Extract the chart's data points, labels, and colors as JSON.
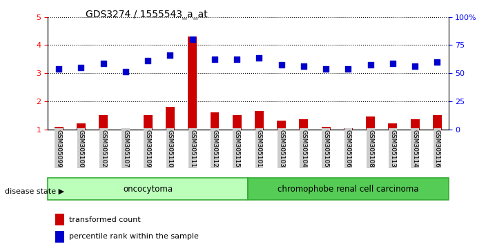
{
  "title": "GDS3274 / 1555543_a_at",
  "samples": [
    "GSM305099",
    "GSM305100",
    "GSM305102",
    "GSM305107",
    "GSM305109",
    "GSM305110",
    "GSM305111",
    "GSM305112",
    "GSM305115",
    "GSM305101",
    "GSM305103",
    "GSM305104",
    "GSM305105",
    "GSM305106",
    "GSM305108",
    "GSM305113",
    "GSM305114",
    "GSM305116"
  ],
  "red_values": [
    1.1,
    1.2,
    1.5,
    1.05,
    1.5,
    1.8,
    4.3,
    1.6,
    1.5,
    1.65,
    1.3,
    1.35,
    1.1,
    1.05,
    1.45,
    1.2,
    1.35,
    1.5
  ],
  "blue_values": [
    3.15,
    3.2,
    3.35,
    3.05,
    3.45,
    3.65,
    4.2,
    3.5,
    3.5,
    3.55,
    3.3,
    3.25,
    3.15,
    3.15,
    3.3,
    3.35,
    3.25,
    3.4
  ],
  "ylim_left": [
    1,
    5
  ],
  "ylim_right": [
    0,
    100
  ],
  "yticks_left": [
    1,
    2,
    3,
    4,
    5
  ],
  "yticks_right": [
    0,
    25,
    50,
    75,
    100
  ],
  "ytick_labels_right": [
    "0",
    "25",
    "50",
    "75",
    "100%"
  ],
  "group1_label": "oncocytoma",
  "group2_label": "chromophobe renal cell carcinoma",
  "group1_count": 9,
  "group2_count": 9,
  "disease_state_label": "disease state",
  "legend_red": "transformed count",
  "legend_blue": "percentile rank within the sample",
  "bar_color": "#cc0000",
  "dot_color": "#0000cc",
  "group1_color": "#bbffbb",
  "group2_color": "#55cc55",
  "tick_label_bg": "#cccccc",
  "bar_width": 0.4,
  "dot_size": 28
}
